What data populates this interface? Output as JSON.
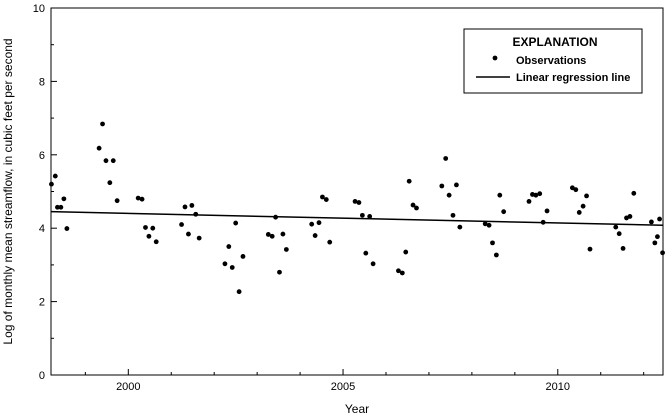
{
  "chart_data": {
    "type": "scatter",
    "title": "",
    "xlabel": "Year",
    "ylabel": "Log of monthly mean streamflow, in cubic feet per second",
    "xlim": [
      1998.2,
      2012.45
    ],
    "ylim": [
      0,
      10
    ],
    "xticks": [
      2000,
      2005,
      2010
    ],
    "yticks": [
      0,
      2,
      4,
      6,
      8,
      10
    ],
    "grid": false,
    "legend": {
      "title": "EXPLANATION",
      "placement": "top-right",
      "items": [
        "Observations",
        "Linear regression line"
      ]
    },
    "regression_line": {
      "x": [
        1998.2,
        2012.45
      ],
      "y": [
        4.45,
        4.08
      ]
    },
    "series": [
      {
        "name": "Observations",
        "points": [
          [
            1998.21,
            5.2
          ],
          [
            1998.3,
            5.42
          ],
          [
            1998.35,
            4.57
          ],
          [
            1998.43,
            4.57
          ],
          [
            1998.5,
            4.8
          ],
          [
            1998.57,
            3.99
          ],
          [
            1999.32,
            6.18
          ],
          [
            1999.4,
            6.84
          ],
          [
            1999.48,
            5.84
          ],
          [
            1999.57,
            5.24
          ],
          [
            1999.65,
            5.84
          ],
          [
            1999.74,
            4.75
          ],
          [
            2000.23,
            4.82
          ],
          [
            2000.32,
            4.79
          ],
          [
            2000.4,
            4.02
          ],
          [
            2000.48,
            3.78
          ],
          [
            2000.57,
            4.0
          ],
          [
            2000.65,
            3.63
          ],
          [
            2001.24,
            4.1
          ],
          [
            2001.32,
            4.58
          ],
          [
            2001.4,
            3.84
          ],
          [
            2001.48,
            4.62
          ],
          [
            2001.57,
            4.38
          ],
          [
            2001.65,
            3.73
          ],
          [
            2002.25,
            3.03
          ],
          [
            2002.34,
            3.5
          ],
          [
            2002.42,
            2.93
          ],
          [
            2002.5,
            4.14
          ],
          [
            2002.58,
            2.27
          ],
          [
            2002.67,
            3.23
          ],
          [
            2003.26,
            3.83
          ],
          [
            2003.35,
            3.78
          ],
          [
            2003.43,
            4.3
          ],
          [
            2003.52,
            2.8
          ],
          [
            2003.6,
            3.84
          ],
          [
            2003.68,
            3.42
          ],
          [
            2004.27,
            4.11
          ],
          [
            2004.35,
            3.8
          ],
          [
            2004.44,
            4.15
          ],
          [
            2004.52,
            4.85
          ],
          [
            2004.61,
            4.78
          ],
          [
            2004.69,
            3.62
          ],
          [
            2005.28,
            4.73
          ],
          [
            2005.37,
            4.7
          ],
          [
            2005.45,
            4.35
          ],
          [
            2005.53,
            3.32
          ],
          [
            2005.62,
            4.32
          ],
          [
            2005.7,
            3.03
          ],
          [
            2006.29,
            2.84
          ],
          [
            2006.38,
            2.78
          ],
          [
            2006.46,
            3.35
          ],
          [
            2006.54,
            5.28
          ],
          [
            2006.63,
            4.63
          ],
          [
            2006.71,
            4.55
          ],
          [
            2007.3,
            5.15
          ],
          [
            2007.39,
            5.9
          ],
          [
            2007.47,
            4.9
          ],
          [
            2007.56,
            4.35
          ],
          [
            2007.64,
            5.18
          ],
          [
            2007.72,
            4.03
          ],
          [
            2008.31,
            4.12
          ],
          [
            2008.4,
            4.08
          ],
          [
            2008.48,
            3.6
          ],
          [
            2008.57,
            3.27
          ],
          [
            2008.65,
            4.9
          ],
          [
            2008.74,
            4.45
          ],
          [
            2009.33,
            4.73
          ],
          [
            2009.41,
            4.92
          ],
          [
            2009.49,
            4.9
          ],
          [
            2009.58,
            4.94
          ],
          [
            2009.66,
            4.16
          ],
          [
            2009.75,
            4.47
          ],
          [
            2010.34,
            5.1
          ],
          [
            2010.42,
            5.05
          ],
          [
            2010.5,
            4.43
          ],
          [
            2010.59,
            4.6
          ],
          [
            2010.67,
            4.88
          ],
          [
            2010.75,
            3.43
          ],
          [
            2011.35,
            4.03
          ],
          [
            2011.43,
            3.85
          ],
          [
            2011.52,
            3.45
          ],
          [
            2011.6,
            4.28
          ],
          [
            2011.68,
            4.32
          ],
          [
            2011.77,
            4.95
          ],
          [
            2012.18,
            4.17
          ],
          [
            2012.26,
            3.6
          ],
          [
            2012.32,
            3.77
          ],
          [
            2012.37,
            4.25
          ],
          [
            2012.44,
            3.33
          ]
        ]
      }
    ]
  }
}
